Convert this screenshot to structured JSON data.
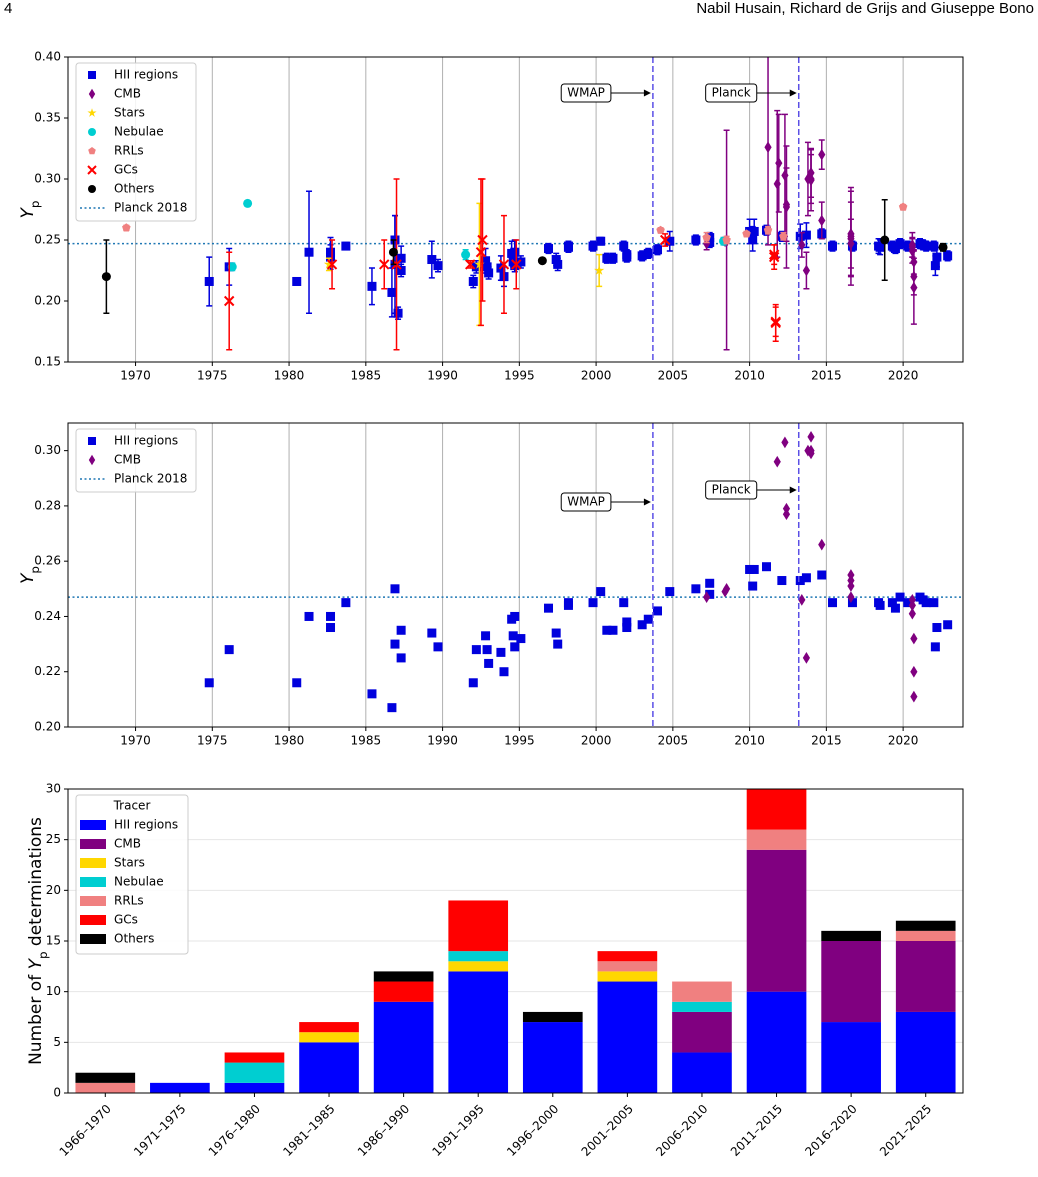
{
  "header": {
    "page": "4",
    "authors": "Nabil Husain, Richard de Grijs and Giuseppe Bono"
  },
  "chart_data": [
    {
      "type": "scatter",
      "xlim": [
        1965.6,
        2023.9
      ],
      "ylim": [
        0.15,
        0.4
      ],
      "xticks": [
        1970,
        1975,
        1980,
        1985,
        1990,
        1995,
        2000,
        2005,
        2010,
        2015,
        2020
      ],
      "yticks": [
        {
          "value": 0.15,
          "label": "0.15"
        },
        {
          "value": 0.2,
          "label": "0.20"
        },
        {
          "value": 0.25,
          "label": "0.25"
        },
        {
          "value": 0.3,
          "label": "0.30"
        },
        {
          "value": 0.35,
          "label": "0.35"
        },
        {
          "value": 0.4,
          "label": "0.40"
        }
      ],
      "ylabel": {
        "symbol": "Y",
        "subscript": "p"
      },
      "grid": "x",
      "legend": "upper left",
      "reference_line": {
        "name": "Planck 2018",
        "value": 0.247,
        "color": "#1f77b4"
      },
      "markers": [
        {
          "x": 2003.7,
          "label": "WMAP",
          "color": "#5b4fe6"
        },
        {
          "x": 2013.2,
          "label": "Planck",
          "color": "#5b4fe6"
        }
      ],
      "series": [
        {
          "name": "HII regions",
          "marker": "square",
          "color": "#0000dd",
          "x": [
            1974.8,
            1976.1,
            1980.5,
            1981.3,
            1982.7,
            1982.7,
            1983.7,
            1985.4,
            1986.7,
            1986.9,
            1986.9,
            1987.1,
            1987.3,
            1987.3,
            1989.3,
            1989.7,
            1992.0,
            1992.2,
            1992.8,
            1992.9,
            1993.0,
            1993.8,
            1994.0,
            1994.5,
            1994.7,
            1994.6,
            1994.7,
            1995.1,
            1996.9,
            1997.4,
            1997.5,
            1998.2,
            1998.2,
            1999.8,
            2000.3,
            2000.7,
            2001.1,
            2001.8,
            2002.0,
            2002.0,
            2003.0,
            2003.4,
            2004.0,
            2004.8,
            2006.5,
            2007.4,
            2007.4,
            2010.0,
            2010.2,
            2010.3,
            2011.1,
            2012.1,
            2013.3,
            2013.7,
            2014.7,
            2015.4,
            2016.7,
            2018.4,
            2018.5,
            2019.3,
            2019.5,
            2019.8,
            2020.3,
            2021.1,
            2021.3,
            2021.5,
            2022.0,
            2022.2,
            2022.1,
            2022.9
          ],
          "values": [
            0.216,
            0.228,
            0.216,
            0.24,
            0.24,
            0.236,
            0.245,
            0.212,
            0.207,
            0.25,
            0.23,
            0.19,
            0.235,
            0.225,
            0.234,
            0.229,
            0.216,
            0.228,
            0.233,
            0.228,
            0.223,
            0.227,
            0.22,
            0.239,
            0.24,
            0.233,
            0.229,
            0.232,
            0.243,
            0.234,
            0.23,
            0.244,
            0.245,
            0.245,
            0.249,
            0.235,
            0.235,
            0.245,
            0.236,
            0.238,
            0.237,
            0.239,
            0.242,
            0.249,
            0.25,
            0.252,
            0.248,
            0.257,
            0.251,
            0.257,
            0.258,
            0.253,
            0.253,
            0.254,
            0.255,
            0.245,
            0.245,
            0.245,
            0.244,
            0.245,
            0.243,
            0.247,
            0.245,
            0.247,
            0.246,
            0.245,
            0.245,
            0.236,
            0.229,
            0.237
          ],
          "errors": [
            0.02,
            0.015,
            0.003,
            0.05,
            0.012,
            0.01,
            0.003,
            0.015,
            0.02,
            0.02,
            0.04,
            0.005,
            0.01,
            0.005,
            0.015,
            0.005,
            0.005,
            0.005,
            0.01,
            0.005,
            0.005,
            0.01,
            0.008,
            0.01,
            0.01,
            0.005,
            0.005,
            0.005,
            0.004,
            0.005,
            0.005,
            0.004,
            0.004,
            0.004,
            0.003,
            0.004,
            0.004,
            0.004,
            0.004,
            0.004,
            0.004,
            0.004,
            0.004,
            0.008,
            0.004,
            0.004,
            0.004,
            0.01,
            0.01,
            0.01,
            0.004,
            0.004,
            0.01,
            0.01,
            0.004,
            0.004,
            0.004,
            0.006,
            0.006,
            0.004,
            0.004,
            0.004,
            0.004,
            0.004,
            0.004,
            0.004,
            0.004,
            0.008,
            0.008,
            0.004
          ]
        },
        {
          "name": "CMB",
          "marker": "diamond",
          "color": "#800080",
          "x": [
            2007.2,
            2008.4,
            2008.5,
            2011.2,
            2011.8,
            2011.9,
            2012.3,
            2012.4,
            2012.4,
            2013.4,
            2013.7,
            2013.8,
            2014.0,
            2014.0,
            2014.0,
            2014.7,
            2014.7,
            2016.6,
            2016.6,
            2016.6,
            2016.6,
            2020.6,
            2020.6,
            2020.7,
            2020.7,
            2020.7,
            2020.6
          ],
          "values": [
            0.247,
            0.249,
            0.25,
            0.326,
            0.296,
            0.313,
            0.303,
            0.279,
            0.277,
            0.246,
            0.225,
            0.3,
            0.299,
            0.305,
            0.3,
            0.266,
            0.32,
            0.255,
            0.251,
            0.247,
            0.253,
            0.246,
            0.241,
            0.232,
            0.22,
            0.211,
            0.244
          ],
          "errors": [
            0.005,
            0.003,
            0.09,
            0.08,
            0.06,
            0.04,
            0.05,
            0.03,
            0.05,
            0.01,
            0.015,
            0.03,
            0.025,
            0.02,
            0.02,
            0.015,
            0.012,
            0.035,
            0.03,
            0.02,
            0.04,
            0.01,
            0.01,
            0.01,
            0.015,
            0.03,
            0.008
          ]
        },
        {
          "name": "Stars",
          "marker": "star",
          "color": "#ffd700",
          "x": [
            1982.6,
            1992.4,
            2000.2
          ],
          "values": [
            0.23,
            0.23,
            0.225
          ],
          "errors": [
            0.005,
            0.05,
            0.013
          ]
        },
        {
          "name": "Nebulae",
          "marker": "circle",
          "color": "#00ced1",
          "x": [
            1976.3,
            1977.3,
            1991.5,
            2008.3
          ],
          "values": [
            0.228,
            0.28,
            0.238,
            0.249
          ],
          "errors": [
            0.003,
            0.002,
            0.004,
            0.003
          ]
        },
        {
          "name": "RRLs",
          "marker": "pentagon",
          "color": "#f08080",
          "x": [
            1969.4,
            2004.2,
            2007.2,
            2008.5,
            2009.8,
            2011.2,
            2012.2,
            2020.0
          ],
          "values": [
            0.26,
            0.258,
            0.252,
            0.25,
            0.255,
            0.258,
            0.253,
            0.277
          ],
          "errors": [
            0.002,
            0.002,
            0.004,
            0.003,
            0.002,
            0.003,
            0.003,
            0.002
          ]
        },
        {
          "name": "GCs",
          "marker": "x",
          "color": "#ff0000",
          "x": [
            1976.1,
            1982.8,
            1986.2,
            1987.0,
            1991.8,
            1992.5,
            1992.6,
            1994.0,
            1994.8,
            2004.5,
            2011.6,
            2011.6,
            2011.7,
            2011.7
          ],
          "values": [
            0.2,
            0.23,
            0.23,
            0.23,
            0.23,
            0.24,
            0.25,
            0.23,
            0.23,
            0.25,
            0.236,
            0.238,
            0.182,
            0.183
          ],
          "errors": [
            0.04,
            0.02,
            0.02,
            0.07,
            0.003,
            0.06,
            0.05,
            0.04,
            0.02,
            0.005,
            0.01,
            0.008,
            0.015,
            0.012
          ]
        },
        {
          "name": "Others",
          "marker": "circle",
          "color": "#000000",
          "x": [
            1968.1,
            1986.8,
            1996.5,
            2018.8,
            2022.6
          ],
          "values": [
            0.22,
            0.24,
            0.233,
            0.25,
            0.244
          ],
          "errors": [
            0.03,
            0.01,
            0.002,
            0.033,
            0.003
          ]
        }
      ]
    },
    {
      "type": "scatter",
      "xlim": [
        1965.6,
        2023.9
      ],
      "ylim": [
        0.2,
        0.31
      ],
      "xticks": [
        1970,
        1975,
        1980,
        1985,
        1990,
        1995,
        2000,
        2005,
        2010,
        2015,
        2020
      ],
      "yticks": [
        {
          "value": 0.2,
          "label": "0.20"
        },
        0.22,
        0.24,
        0.26,
        0.28,
        {
          "value": 0.3,
          "label": "0.30"
        }
      ],
      "ylabel": {
        "symbol": "Y",
        "subscript": "p"
      },
      "grid": "x",
      "legend": "upper left",
      "reference_line": {
        "name": "Planck 2018",
        "value": 0.247,
        "color": "#1f77b4"
      },
      "markers": [
        {
          "x": 2003.7,
          "label": "WMAP",
          "color": "#5b4fe6"
        },
        {
          "x": 2013.2,
          "label": "Planck",
          "color": "#5b4fe6"
        }
      ],
      "series": [
        {
          "name": "HII regions",
          "marker": "square",
          "color": "#0000dd",
          "x": [
            1974.8,
            1976.1,
            1980.5,
            1981.3,
            1982.7,
            1982.7,
            1983.7,
            1985.4,
            1986.7,
            1986.9,
            1986.9,
            1987.3,
            1987.3,
            1989.3,
            1989.7,
            1992.0,
            1992.2,
            1992.8,
            1992.9,
            1993.0,
            1993.8,
            1994.0,
            1994.5,
            1994.7,
            1994.6,
            1994.7,
            1995.1,
            1996.9,
            1997.4,
            1997.5,
            1998.2,
            1998.2,
            1999.8,
            2000.3,
            2000.7,
            2001.1,
            2001.8,
            2002.0,
            2002.0,
            2003.0,
            2003.4,
            2004.0,
            2004.8,
            2006.5,
            2007.4,
            2007.4,
            2010.0,
            2010.2,
            2010.3,
            2011.1,
            2012.1,
            2013.3,
            2013.7,
            2014.7,
            2015.4,
            2016.7,
            2018.4,
            2018.5,
            2019.3,
            2019.5,
            2019.8,
            2020.3,
            2021.1,
            2021.3,
            2021.5,
            2022.0,
            2022.2,
            2022.1,
            2022.9
          ],
          "values": [
            0.216,
            0.228,
            0.216,
            0.24,
            0.24,
            0.236,
            0.245,
            0.212,
            0.207,
            0.25,
            0.23,
            0.235,
            0.225,
            0.234,
            0.229,
            0.216,
            0.228,
            0.233,
            0.228,
            0.223,
            0.227,
            0.22,
            0.239,
            0.24,
            0.233,
            0.229,
            0.232,
            0.243,
            0.234,
            0.23,
            0.244,
            0.245,
            0.245,
            0.249,
            0.235,
            0.235,
            0.245,
            0.236,
            0.238,
            0.237,
            0.239,
            0.242,
            0.249,
            0.25,
            0.252,
            0.248,
            0.257,
            0.251,
            0.257,
            0.258,
            0.253,
            0.253,
            0.254,
            0.255,
            0.245,
            0.245,
            0.245,
            0.244,
            0.245,
            0.243,
            0.247,
            0.245,
            0.247,
            0.246,
            0.245,
            0.245,
            0.236,
            0.229,
            0.237
          ]
        },
        {
          "name": "CMB",
          "marker": "diamond",
          "color": "#800080",
          "x": [
            2007.2,
            2008.4,
            2008.5,
            2011.8,
            2012.3,
            2012.4,
            2012.4,
            2013.4,
            2013.7,
            2013.8,
            2014.0,
            2014.0,
            2014.0,
            2014.7,
            2016.6,
            2016.6,
            2016.6,
            2016.6,
            2020.6,
            2020.6,
            2020.7,
            2020.7,
            2020.7,
            2020.6
          ],
          "values": [
            0.247,
            0.249,
            0.25,
            0.296,
            0.303,
            0.279,
            0.277,
            0.246,
            0.225,
            0.3,
            0.299,
            0.305,
            0.3,
            0.266,
            0.255,
            0.251,
            0.247,
            0.253,
            0.246,
            0.241,
            0.232,
            0.22,
            0.211,
            0.244
          ]
        }
      ]
    },
    {
      "type": "bar",
      "stacked": true,
      "ylim": [
        0,
        30
      ],
      "yticks": [
        0,
        5,
        10,
        15,
        20,
        25,
        30
      ],
      "grid": "y",
      "ylabel": {
        "text": "Number of ",
        "symbol": "Y",
        "subscript": "p",
        "after": " determinations"
      },
      "legend": "upper left",
      "legend_title": "Tracer",
      "categories": [
        "1966–1970",
        "1971–1975",
        "1976–1980",
        "1981–1985",
        "1986–1990",
        "1991–1995",
        "1996–2000",
        "2001–2005",
        "2006–2010",
        "2011–2015",
        "2016–2020",
        "2021–2025"
      ],
      "series": [
        {
          "name": "HII regions",
          "color": "#0000ff",
          "values": [
            0,
            1,
            1,
            5,
            9,
            12,
            7,
            11,
            4,
            10,
            7,
            8
          ]
        },
        {
          "name": "CMB",
          "color": "#800080",
          "values": [
            0,
            0,
            0,
            0,
            0,
            0,
            0,
            0,
            4,
            14,
            8,
            7
          ]
        },
        {
          "name": "Stars",
          "color": "#ffd700",
          "values": [
            0,
            0,
            0,
            1,
            0,
            1,
            0,
            1,
            0,
            0,
            0,
            0
          ]
        },
        {
          "name": "Nebulae",
          "color": "#00ced1",
          "values": [
            0,
            0,
            2,
            0,
            0,
            1,
            0,
            0,
            1,
            0,
            0,
            0
          ]
        },
        {
          "name": "RRLs",
          "color": "#f08080",
          "values": [
            1,
            0,
            0,
            0,
            0,
            0,
            0,
            1,
            2,
            2,
            0,
            1
          ]
        },
        {
          "name": "GCs",
          "color": "#ff0000",
          "values": [
            0,
            0,
            1,
            1,
            2,
            5,
            0,
            1,
            0,
            4,
            0,
            0
          ]
        },
        {
          "name": "Others",
          "color": "#000000",
          "values": [
            1,
            0,
            0,
            0,
            1,
            0,
            1,
            0,
            0,
            0,
            1,
            1
          ]
        }
      ]
    }
  ]
}
